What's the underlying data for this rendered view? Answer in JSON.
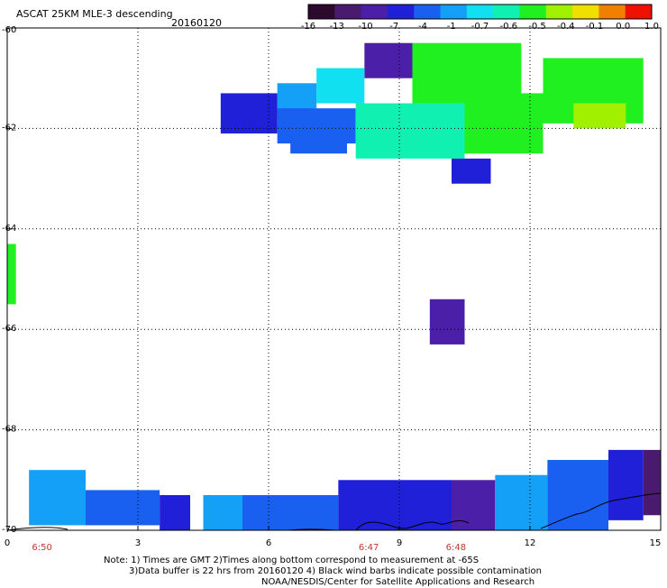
{
  "title": "ASCAT 25KM MLE-3 descending",
  "date": "20160120",
  "notes": {
    "line1": "Note: 1) Times are GMT 2)Times along bottom correspond to measurement at -65S",
    "line2": "3)Data buffer is 22 hrs from 20160120 4) Black wind barbs indicate possible contamination",
    "line3": "NOAA/NESDIS/Center for Satellite Applications and Research"
  },
  "chart_data": {
    "type": "heatmap",
    "title": "ASCAT 25KM MLE-3 descending",
    "xlabel": "",
    "ylabel": "",
    "xlim": [
      0,
      15
    ],
    "ylim": [
      -70,
      -60
    ],
    "x_ticks": [
      "0",
      "3",
      "6",
      "9",
      "12",
      "15"
    ],
    "y_ticks": [
      "-60",
      "-62",
      "-64",
      "-66",
      "-68",
      "-70"
    ],
    "time_labels": [
      {
        "x": 0.8,
        "text": "6:50"
      },
      {
        "x": 8.3,
        "text": "6:47"
      },
      {
        "x": 10.3,
        "text": "6:48"
      }
    ],
    "colorbar": {
      "labels": [
        "-16",
        "-13",
        "-10",
        "-7",
        "-4",
        "-1",
        "-0.7",
        "-0.6",
        "-0.5",
        "-0.4",
        "-0.1",
        "0.0",
        "1.0"
      ],
      "colors": [
        "#2b0a2e",
        "#4a1a6e",
        "#4b1fa8",
        "#2020d8",
        "#1a60f0",
        "#15a0f8",
        "#10e0f0",
        "#10f0b0",
        "#20f020",
        "#a0f000",
        "#f0e000",
        "#f08000",
        "#f01000"
      ]
    },
    "grid": true,
    "blocks": [
      {
        "x0": 8.2,
        "x1": 9.3,
        "y0": -61.0,
        "y1": -60.3,
        "color": "#4b1fa8"
      },
      {
        "x0": 9.3,
        "x1": 11.8,
        "y0": -61.5,
        "y1": -60.3,
        "color": "#20f020"
      },
      {
        "x0": 7.1,
        "x1": 8.2,
        "y0": -61.5,
        "y1": -60.8,
        "color": "#10e0f0"
      },
      {
        "x0": 6.2,
        "x1": 7.1,
        "y0": -61.8,
        "y1": -61.1,
        "color": "#15a0f8"
      },
      {
        "x0": 4.9,
        "x1": 6.2,
        "y0": -62.1,
        "y1": -61.3,
        "color": "#2020d8"
      },
      {
        "x0": 6.2,
        "x1": 8.0,
        "y0": -62.3,
        "y1": -61.6,
        "color": "#1a60f0"
      },
      {
        "x0": 8.0,
        "x1": 10.5,
        "y0": -62.6,
        "y1": -61.5,
        "color": "#10f0b0"
      },
      {
        "x0": 10.5,
        "x1": 12.3,
        "y0": -62.5,
        "y1": -61.3,
        "color": "#20f020"
      },
      {
        "x0": 12.3,
        "x1": 14.6,
        "y0": -61.9,
        "y1": -60.6,
        "color": "#20f020"
      },
      {
        "x0": 13.0,
        "x1": 14.2,
        "y0": -62.0,
        "y1": -61.5,
        "color": "#a0f000"
      },
      {
        "x0": 6.5,
        "x1": 7.8,
        "y0": -62.5,
        "y1": -62.0,
        "color": "#1a60f0"
      },
      {
        "x0": 10.2,
        "x1": 11.1,
        "y0": -63.1,
        "y1": -62.6,
        "color": "#2020d8"
      },
      {
        "x0": 0.0,
        "x1": 0.2,
        "y0": -65.5,
        "y1": -64.3,
        "color": "#20f020"
      },
      {
        "x0": 9.7,
        "x1": 10.5,
        "y0": -66.3,
        "y1": -65.4,
        "color": "#4b1fa8"
      },
      {
        "x0": 0.5,
        "x1": 1.8,
        "y0": -69.9,
        "y1": -68.8,
        "color": "#15a0f8"
      },
      {
        "x0": 1.8,
        "x1": 3.5,
        "y0": -69.9,
        "y1": -69.2,
        "color": "#1a60f0"
      },
      {
        "x0": 3.5,
        "x1": 4.2,
        "y0": -70.0,
        "y1": -69.3,
        "color": "#2020d8"
      },
      {
        "x0": 4.5,
        "x1": 5.4,
        "y0": -70.0,
        "y1": -69.3,
        "color": "#15a0f8"
      },
      {
        "x0": 5.4,
        "x1": 7.6,
        "y0": -70.0,
        "y1": -69.3,
        "color": "#1a60f0"
      },
      {
        "x0": 7.6,
        "x1": 10.2,
        "y0": -70.0,
        "y1": -69.0,
        "color": "#2020d8"
      },
      {
        "x0": 10.2,
        "x1": 11.2,
        "y0": -70.0,
        "y1": -69.0,
        "color": "#4b1fa8"
      },
      {
        "x0": 11.2,
        "x1": 12.4,
        "y0": -70.0,
        "y1": -68.9,
        "color": "#15a0f8"
      },
      {
        "x0": 12.4,
        "x1": 13.8,
        "y0": -70.0,
        "y1": -68.6,
        "color": "#1a60f0"
      },
      {
        "x0": 13.8,
        "x1": 14.6,
        "y0": -69.8,
        "y1": -68.4,
        "color": "#2020d8"
      },
      {
        "x0": 14.6,
        "x1": 15.0,
        "y0": -69.7,
        "y1": -68.4,
        "color": "#4a1a6e"
      }
    ]
  }
}
